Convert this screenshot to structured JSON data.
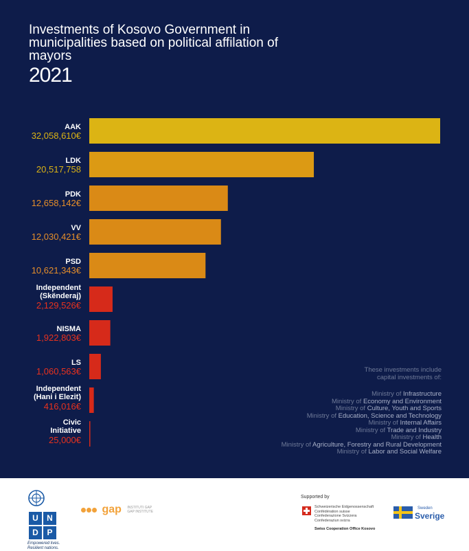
{
  "header": {
    "title": "Investments of Kosovo Government in municipalities based on political affilation of mayors",
    "year": "2021"
  },
  "chart_data": {
    "type": "bar",
    "orientation": "horizontal",
    "title": "Investments of Kosovo Government in municipalities based on political affilation of mayors",
    "subtitle": "2021",
    "categories": [
      [
        "AAK"
      ],
      [
        "LDK"
      ],
      [
        "PDK"
      ],
      [
        "VV"
      ],
      [
        "PSD"
      ],
      [
        "Independent",
        "(Skënderaj)"
      ],
      [
        "NISMA"
      ],
      [
        "LS"
      ],
      [
        "Independent",
        "(Hani i Elezit)"
      ],
      [
        "Civic",
        "Initiative"
      ]
    ],
    "values": [
      32058610,
      20517758,
      12658142,
      12030421,
      10621343,
      2129526,
      1922803,
      1060563,
      416016,
      25000
    ],
    "value_labels": [
      "32,058,610€",
      "20,517,758",
      "12,658,142€",
      "12,030,421€",
      "10,621,343€",
      "2,129,526€",
      "1,922,803€",
      "1,060,563€",
      "416,016€",
      "25,000€"
    ],
    "colors": [
      "#dcb414",
      "#dc9a14",
      "#da8a16",
      "#da8a16",
      "#da8a16",
      "#d62a1a",
      "#d62a1a",
      "#d62a1a",
      "#d62a1a",
      "#d62a1a"
    ],
    "value_colors": [
      "#dcb414",
      "#dcb414",
      "#e58e2a",
      "#e58e2a",
      "#e58e2a",
      "#e8321e",
      "#e8321e",
      "#e8321e",
      "#e8321e",
      "#e8321e"
    ],
    "xlim": [
      0,
      32058610
    ],
    "grid": false,
    "legend": "none"
  },
  "note": {
    "header": [
      "These investments include",
      "capital investments of:"
    ],
    "ministries": [
      {
        "prefix": "Ministry of ",
        "name": "Infrastructure"
      },
      {
        "prefix": "Ministry of ",
        "name": "Economy and Environment"
      },
      {
        "prefix": "Ministry of ",
        "name": "Culture, Youth and Sports"
      },
      {
        "prefix": "Ministry of ",
        "name": "Education, Science and Technology"
      },
      {
        "prefix": "Ministry of ",
        "name": "Internal Affairs"
      },
      {
        "prefix": "Ministry of ",
        "name": "Trade and Industry"
      },
      {
        "prefix": "Ministry of ",
        "name": "Health"
      },
      {
        "prefix": "Ministry of ",
        "name": "Agriculture, Forestry and Rural Development"
      },
      {
        "prefix": "Ministry of ",
        "name": "Labor and Social Welfare"
      }
    ]
  },
  "footer": {
    "undp_letters": [
      "U",
      "N",
      "D",
      "P"
    ],
    "undp_tagline": [
      "Empowered lives.",
      "Resilient nations."
    ],
    "gap_word": "gap",
    "gap_sub": [
      "INSTITUTI GAP",
      "GAP INSTITUTE"
    ],
    "supported_by": "Supported by",
    "swiss_lines": [
      "Schweizerische Eidgenossenschaft",
      "Confédération suisse",
      "Confederazione Svizzera",
      "Confederaziun svizra"
    ],
    "swiss_office": "Swiss Cooperation Office Kosovo",
    "sweden_small": "Sweden",
    "sweden_big": "Sverige"
  }
}
